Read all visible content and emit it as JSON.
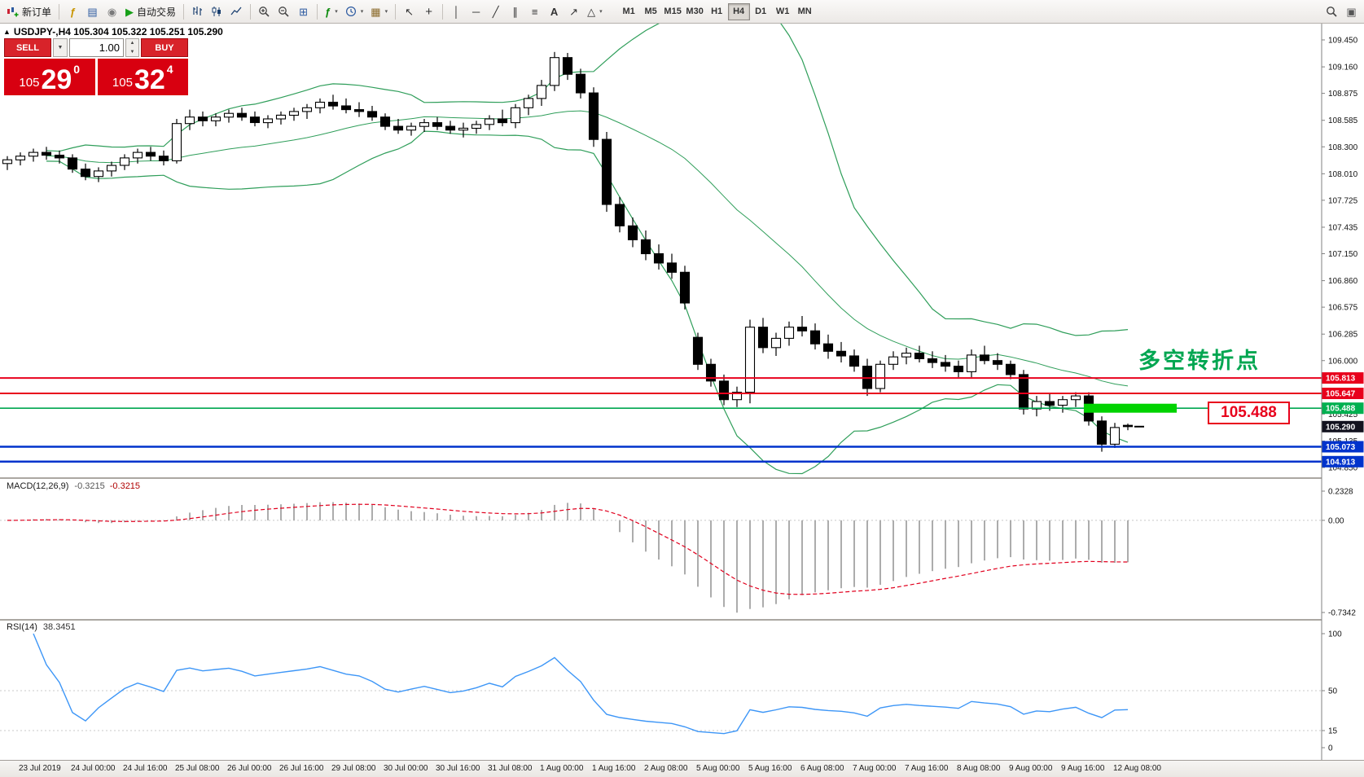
{
  "toolbar": {
    "new_order_label": "新订单",
    "auto_trading_label": "自动交易",
    "timeframes": [
      "M1",
      "M5",
      "M15",
      "M30",
      "H1",
      "H4",
      "D1",
      "W1",
      "MN"
    ],
    "active_timeframe": "H4"
  },
  "trade_panel": {
    "sell_label": "SELL",
    "buy_label": "BUY",
    "volume": "1.00",
    "sell_price_prefix": "105",
    "sell_price_big": "29",
    "sell_price_sup": "0",
    "buy_price_prefix": "105",
    "buy_price_big": "32",
    "buy_price_sup": "4"
  },
  "chart": {
    "symbol_info": "USDJPY-,H4  105.304 105.322 105.251 105.290",
    "annotation": "多空转折点",
    "annotation_color": "#00a651",
    "price_box_label": "105.488",
    "current_price": 105.29,
    "axis_labels": [
      "109.450",
      "109.160",
      "108.875",
      "108.585",
      "108.300",
      "108.010",
      "107.725",
      "107.435",
      "107.150",
      "106.860",
      "106.575",
      "106.285",
      "106.000",
      "105.425",
      "105.135",
      "104.850"
    ],
    "lines": [
      {
        "price": 105.813,
        "color": "#e8001c",
        "w": 2
      },
      {
        "price": 105.647,
        "color": "#e8001c",
        "w": 2
      },
      {
        "price": 105.488,
        "color": "#00a651",
        "w": 1.6
      },
      {
        "price": 105.073,
        "color": "#0033cc",
        "w": 2.5
      },
      {
        "price": 104.913,
        "color": "#0033cc",
        "w": 2.5
      }
    ],
    "tags": [
      {
        "price": 105.813,
        "label": "105.813",
        "bg": "#e8001c"
      },
      {
        "price": 105.647,
        "label": "105.647",
        "bg": "#e8001c"
      },
      {
        "price": 105.488,
        "label": "105.488",
        "bg": "#00b050"
      },
      {
        "price": 105.29,
        "label": "105.290",
        "bg": "#12121e"
      },
      {
        "price": 105.073,
        "label": "105.073",
        "bg": "#0033cc"
      },
      {
        "price": 104.913,
        "label": "104.913",
        "bg": "#0033cc"
      }
    ],
    "highlight": {
      "price": 105.488,
      "from_bar": 83,
      "color": "#00d300"
    }
  },
  "macd": {
    "label": "MACD(12,26,9)",
    "value_main": "-0.3215",
    "value_signal": "-0.3215",
    "axis": [
      {
        "v": 0.2328,
        "label": "0.2328"
      },
      {
        "v": 0,
        "label": "0.00"
      },
      {
        "v": -0.7342,
        "label": "-0.7342"
      }
    ],
    "range": [
      -0.7342,
      0.2328
    ]
  },
  "rsi": {
    "label": "RSI(14)",
    "value": "38.3451",
    "axis": [
      {
        "v": 100,
        "label": "100"
      },
      {
        "v": 50,
        "label": "50"
      },
      {
        "v": 15,
        "label": "15"
      },
      {
        "v": 0,
        "label": "0"
      }
    ],
    "levels": [
      50,
      15
    ]
  },
  "time_axis": [
    "23 Jul 2019",
    "24 Jul 00:00",
    "24 Jul 16:00",
    "25 Jul 08:00",
    "26 Jul 00:00",
    "26 Jul 16:00",
    "29 Jul 08:00",
    "30 Jul 00:00",
    "30 Jul 16:00",
    "31 Jul 08:00",
    "1 Aug 00:00",
    "1 Aug 16:00",
    "2 Aug 08:00",
    "5 Aug 00:00",
    "5 Aug 16:00",
    "6 Aug 08:00",
    "7 Aug 00:00",
    "7 Aug 16:00",
    "8 Aug 08:00",
    "9 Aug 00:00",
    "9 Aug 16:00",
    "12 Aug 08:00"
  ],
  "chart_data": {
    "type": "candlestick",
    "symbol_timeframe": "USDJPY-,H4",
    "current_ohlc": [
      105.304,
      105.322,
      105.251,
      105.29
    ],
    "price_range": [
      104.85,
      109.45
    ],
    "ohlc": [
      [
        108.12,
        108.2,
        108.05,
        108.16
      ],
      [
        108.16,
        108.24,
        108.1,
        108.2
      ],
      [
        108.2,
        108.28,
        108.14,
        108.24
      ],
      [
        108.24,
        108.3,
        108.16,
        108.21
      ],
      [
        108.21,
        108.26,
        108.12,
        108.18
      ],
      [
        108.18,
        108.22,
        108.02,
        108.06
      ],
      [
        108.06,
        108.12,
        107.94,
        107.98
      ],
      [
        107.98,
        108.08,
        107.92,
        108.04
      ],
      [
        108.04,
        108.14,
        107.98,
        108.1
      ],
      [
        108.1,
        108.22,
        108.05,
        108.18
      ],
      [
        108.18,
        108.28,
        108.12,
        108.24
      ],
      [
        108.24,
        108.3,
        108.15,
        108.2
      ],
      [
        108.2,
        108.26,
        108.1,
        108.15
      ],
      [
        108.15,
        108.6,
        108.12,
        108.55
      ],
      [
        108.55,
        108.7,
        108.48,
        108.62
      ],
      [
        108.62,
        108.68,
        108.52,
        108.58
      ],
      [
        108.58,
        108.66,
        108.52,
        108.62
      ],
      [
        108.62,
        108.7,
        108.56,
        108.66
      ],
      [
        108.66,
        108.72,
        108.58,
        108.62
      ],
      [
        108.62,
        108.68,
        108.52,
        108.56
      ],
      [
        108.56,
        108.64,
        108.5,
        108.6
      ],
      [
        108.6,
        108.68,
        108.54,
        108.64
      ],
      [
        108.64,
        108.72,
        108.58,
        108.68
      ],
      [
        108.68,
        108.76,
        108.6,
        108.72
      ],
      [
        108.72,
        108.82,
        108.66,
        108.78
      ],
      [
        108.78,
        108.86,
        108.7,
        108.74
      ],
      [
        108.74,
        108.82,
        108.66,
        108.7
      ],
      [
        108.7,
        108.78,
        108.62,
        108.68
      ],
      [
        108.68,
        108.74,
        108.58,
        108.62
      ],
      [
        108.62,
        108.66,
        108.48,
        108.52
      ],
      [
        108.52,
        108.6,
        108.44,
        108.48
      ],
      [
        108.48,
        108.56,
        108.42,
        108.52
      ],
      [
        108.52,
        108.6,
        108.46,
        108.56
      ],
      [
        108.56,
        108.62,
        108.48,
        108.52
      ],
      [
        108.52,
        108.58,
        108.44,
        108.48
      ],
      [
        108.48,
        108.56,
        108.4,
        108.5
      ],
      [
        108.5,
        108.58,
        108.44,
        108.54
      ],
      [
        108.54,
        108.64,
        108.48,
        108.6
      ],
      [
        108.6,
        108.7,
        108.52,
        108.56
      ],
      [
        108.56,
        108.76,
        108.5,
        108.72
      ],
      [
        108.72,
        108.86,
        108.64,
        108.82
      ],
      [
        108.82,
        109.02,
        108.74,
        108.96
      ],
      [
        108.96,
        109.32,
        108.9,
        109.26
      ],
      [
        109.26,
        109.31,
        109.02,
        109.08
      ],
      [
        109.08,
        109.14,
        108.82,
        108.88
      ],
      [
        108.88,
        108.94,
        108.3,
        108.38
      ],
      [
        108.38,
        108.46,
        107.6,
        107.68
      ],
      [
        107.68,
        107.76,
        107.38,
        107.45
      ],
      [
        107.45,
        107.54,
        107.22,
        107.3
      ],
      [
        107.3,
        107.4,
        107.08,
        107.15
      ],
      [
        107.15,
        107.25,
        106.98,
        107.05
      ],
      [
        107.05,
        107.15,
        106.88,
        106.95
      ],
      [
        106.95,
        107.02,
        106.55,
        106.62
      ],
      [
        106.25,
        106.3,
        105.9,
        105.96
      ],
      [
        105.96,
        106.02,
        105.72,
        105.78
      ],
      [
        105.78,
        105.85,
        105.52,
        105.58
      ],
      [
        105.58,
        105.72,
        105.5,
        105.66
      ],
      [
        105.66,
        106.44,
        105.54,
        106.36
      ],
      [
        106.36,
        106.46,
        106.08,
        106.14
      ],
      [
        106.14,
        106.3,
        106.05,
        106.24
      ],
      [
        106.24,
        106.42,
        106.16,
        106.36
      ],
      [
        106.36,
        106.48,
        106.26,
        106.32
      ],
      [
        106.32,
        106.4,
        106.12,
        106.18
      ],
      [
        106.18,
        106.28,
        106.02,
        106.1
      ],
      [
        106.1,
        106.2,
        105.98,
        106.05
      ],
      [
        106.05,
        106.12,
        105.88,
        105.94
      ],
      [
        105.94,
        106.02,
        105.62,
        105.7
      ],
      [
        105.7,
        106.0,
        105.66,
        105.96
      ],
      [
        105.96,
        106.1,
        105.9,
        106.04
      ],
      [
        106.04,
        106.14,
        105.96,
        106.08
      ],
      [
        106.08,
        106.16,
        105.98,
        106.02
      ],
      [
        106.02,
        106.1,
        105.92,
        105.98
      ],
      [
        105.98,
        106.06,
        105.88,
        105.94
      ],
      [
        105.94,
        106.0,
        105.82,
        105.88
      ],
      [
        105.88,
        106.12,
        105.82,
        106.06
      ],
      [
        106.06,
        106.16,
        105.96,
        106.0
      ],
      [
        106.0,
        106.08,
        105.9,
        105.96
      ],
      [
        105.96,
        106.0,
        105.8,
        105.85
      ],
      [
        105.85,
        105.9,
        105.42,
        105.48
      ],
      [
        105.48,
        105.62,
        105.4,
        105.56
      ],
      [
        105.56,
        105.64,
        105.46,
        105.52
      ],
      [
        105.52,
        105.62,
        105.44,
        105.58
      ],
      [
        105.58,
        105.66,
        105.5,
        105.62
      ],
      [
        105.62,
        105.66,
        105.3,
        105.35
      ],
      [
        105.35,
        105.4,
        105.02,
        105.1
      ],
      [
        105.1,
        105.33,
        105.06,
        105.28
      ],
      [
        105.304,
        105.322,
        105.251,
        105.29
      ]
    ]
  }
}
